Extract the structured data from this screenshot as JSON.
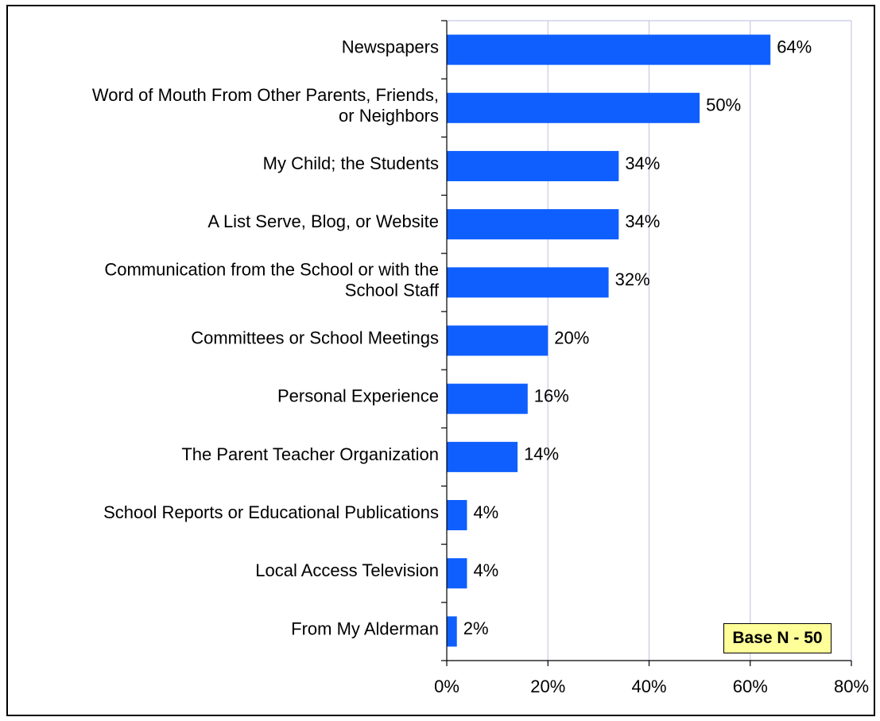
{
  "chart_data": {
    "type": "bar",
    "orientation": "horizontal",
    "categories": [
      "Newspapers",
      "Word of Mouth From Other Parents, Friends, or Neighbors",
      "My Child; the Students",
      "A List Serve, Blog, or Website",
      "Communication from the School or with the School Staff",
      "Committees or School Meetings",
      "Personal Experience",
      "The Parent Teacher Organization",
      "School Reports or Educational Publications",
      "Local Access Television",
      "From My Alderman"
    ],
    "category_lines": [
      [
        "Newspapers"
      ],
      [
        "Word of Mouth From Other Parents, Friends,",
        "or Neighbors"
      ],
      [
        "My Child; the Students"
      ],
      [
        "A List Serve, Blog, or Website"
      ],
      [
        "Communication from the School or with the",
        "School Staff"
      ],
      [
        "Committees or School Meetings"
      ],
      [
        "Personal Experience"
      ],
      [
        "The Parent Teacher Organization"
      ],
      [
        "School Reports or Educational Publications"
      ],
      [
        "Local Access Television"
      ],
      [
        "From My Alderman"
      ]
    ],
    "values": [
      64,
      50,
      34,
      34,
      32,
      20,
      16,
      14,
      4,
      4,
      2
    ],
    "value_labels": [
      "64%",
      "50%",
      "34%",
      "34%",
      "32%",
      "20%",
      "16%",
      "14%",
      "4%",
      "4%",
      "2%"
    ],
    "x_ticks": [
      0,
      20,
      40,
      60,
      80
    ],
    "x_tick_labels": [
      "0%",
      "20%",
      "40%",
      "60%",
      "80%"
    ],
    "xlim": [
      0,
      80
    ],
    "grid": true,
    "bar_color": "#0f5fff",
    "grid_color": "#c8c8e6"
  },
  "annotation": {
    "text": "Base N - 50",
    "background": "#ffff99"
  }
}
